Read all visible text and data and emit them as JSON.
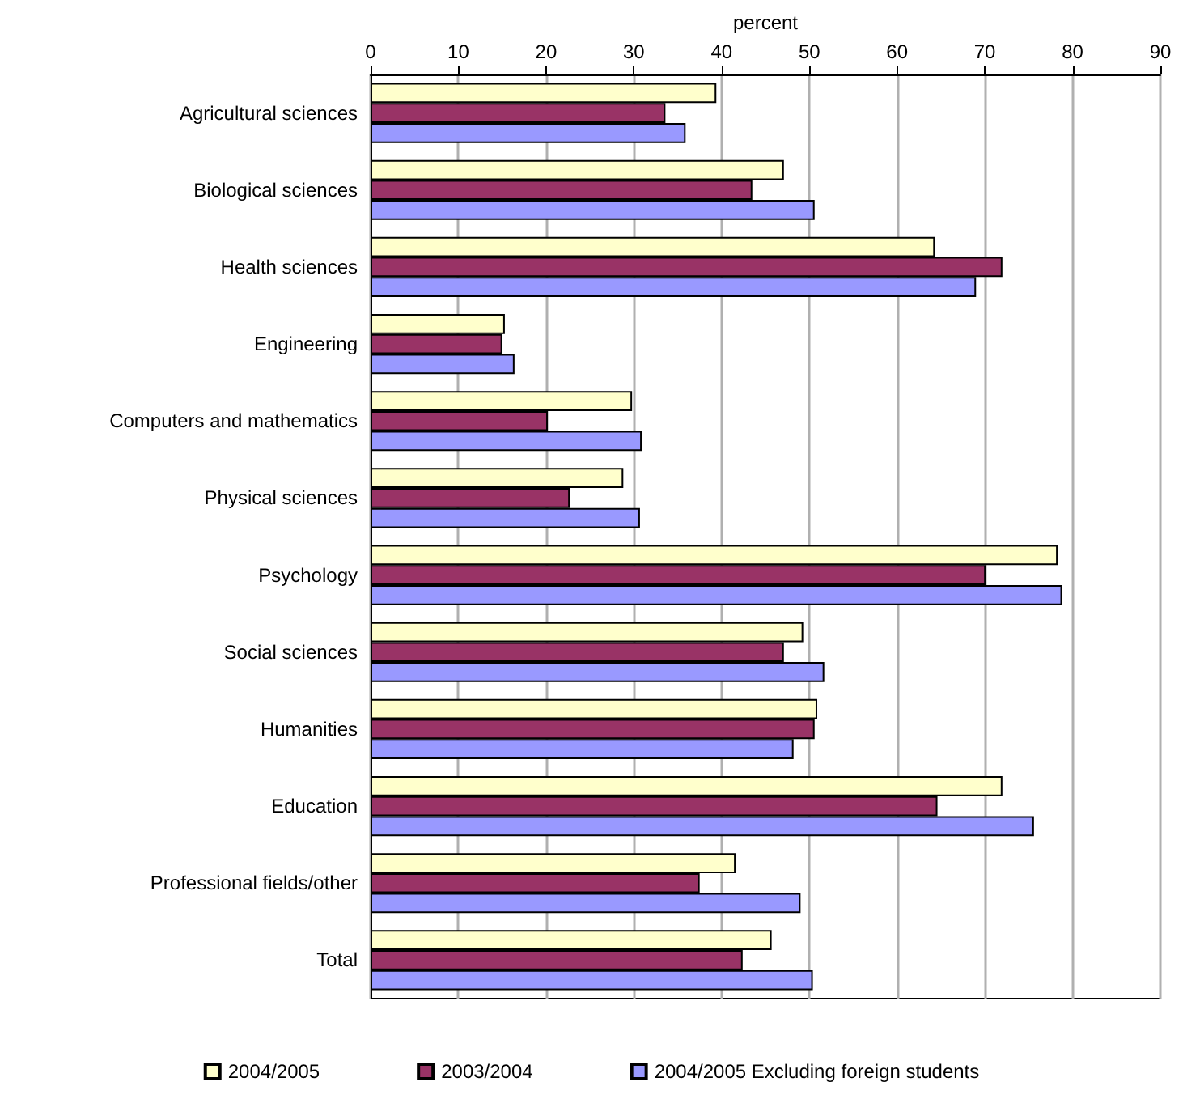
{
  "chart_data": {
    "type": "bar",
    "orientation": "horizontal",
    "xlabel": "percent",
    "categories": [
      "Agricultural sciences",
      "Biological sciences",
      "Health sciences",
      "Engineering",
      "Computers and mathematics",
      "Physical sciences",
      "Psychology",
      "Social sciences",
      "Humanities",
      "Education",
      "Professional fields/other",
      "Total"
    ],
    "series": [
      {
        "name": "2004/2005",
        "color": "#ffffcc",
        "values": [
          39.4,
          47.1,
          64.3,
          15.3,
          29.8,
          28.8,
          78.3,
          49.3,
          50.9,
          72.0,
          41.6,
          45.7
        ]
      },
      {
        "name": "2003/2004",
        "color": "#993366",
        "values": [
          33.6,
          43.5,
          72.0,
          15.0,
          20.2,
          22.7,
          70.1,
          47.1,
          50.6,
          64.6,
          37.5,
          42.4
        ]
      },
      {
        "name": "2004/2005 Excluding foreign students",
        "color": "#9999ff",
        "values": [
          35.9,
          50.6,
          69.0,
          16.4,
          30.9,
          30.7,
          78.8,
          51.7,
          48.2,
          75.6,
          49.0,
          50.4
        ]
      }
    ],
    "xlim": [
      0,
      90
    ],
    "xticks": [
      0,
      10,
      20,
      30,
      40,
      50,
      60,
      70,
      80,
      90
    ],
    "grid": "x",
    "legend": "bottom"
  }
}
